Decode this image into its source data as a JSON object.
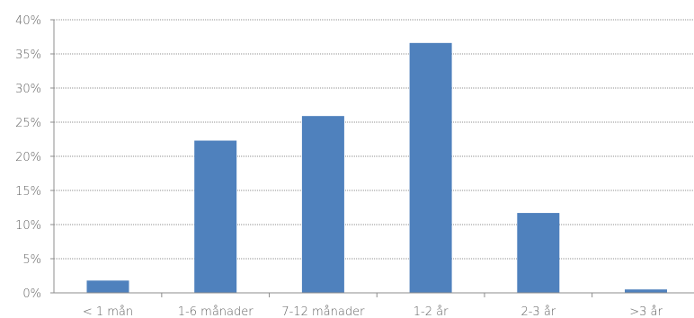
{
  "chart_data": {
    "type": "bar",
    "categories": [
      "< 1 mån",
      "1-6 månader",
      "7-12 månader",
      "1-2 år",
      "2-3 år",
      ">3 år"
    ],
    "values": [
      1.8,
      22.3,
      25.9,
      36.6,
      11.7,
      0.5
    ],
    "y_ticks": [
      "0%",
      "5%",
      "10%",
      "15%",
      "20%",
      "25%",
      "30%",
      "35%",
      "40%"
    ],
    "ylim": [
      0,
      40
    ],
    "y_step": 5,
    "grid": true,
    "legend": "none",
    "bar_color": "#4f81bd",
    "title": "",
    "xlabel": "",
    "ylabel": ""
  }
}
